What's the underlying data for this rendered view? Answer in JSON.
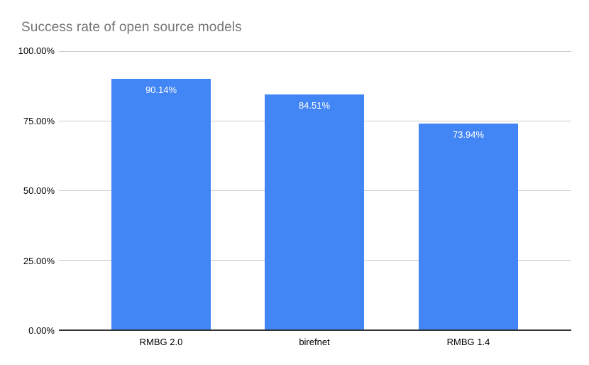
{
  "chart_data": {
    "type": "bar",
    "title": "Success rate of open source models",
    "categories": [
      "RMBG 2.0",
      "birefnet",
      "RMBG 1.4"
    ],
    "values": [
      90.14,
      84.51,
      73.94
    ],
    "value_labels": [
      "90.14%",
      "84.51%",
      "73.94%"
    ],
    "xlabel": "",
    "ylabel": "",
    "ylim": [
      0,
      100
    ],
    "y_ticks": [
      {
        "label": "100.00%",
        "value": 100
      },
      {
        "label": "75.00%",
        "value": 75
      },
      {
        "label": "50.00%",
        "value": 50
      },
      {
        "label": "25.00%",
        "value": 25
      },
      {
        "label": "0.00%",
        "value": 0
      }
    ],
    "grid": "horizontal",
    "legend": "none",
    "colors": {
      "bar": "#4285F4",
      "value_label": "#FFFFFF",
      "title": "#757575",
      "tick_label": "#000000",
      "gridline": "#CCCCCC",
      "axis_line": "#333333",
      "background": "#FFFFFF"
    }
  }
}
